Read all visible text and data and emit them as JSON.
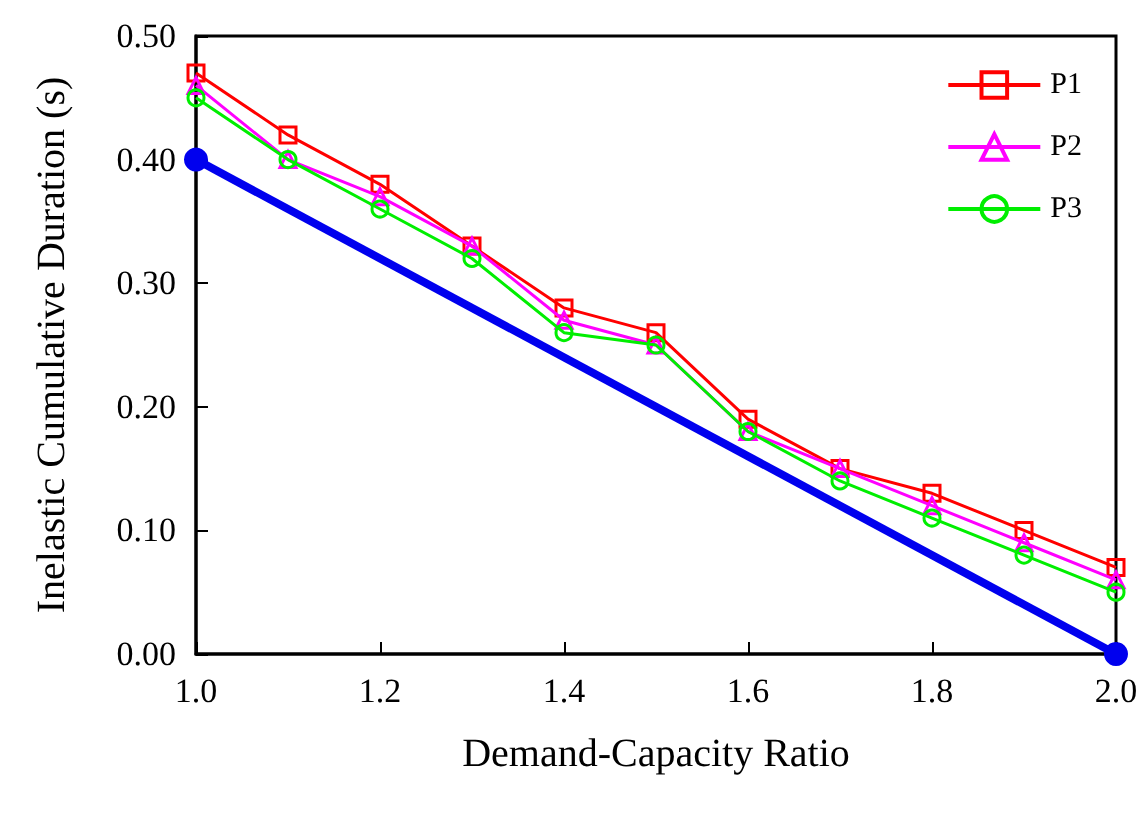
{
  "chart_data": {
    "type": "line",
    "xlabel": "Demand-Capacity Ratio",
    "ylabel": "Inelastic Cumulative Duration (s)",
    "x": [
      1.0,
      1.1,
      1.2,
      1.3,
      1.4,
      1.5,
      1.6,
      1.7,
      1.8,
      1.9,
      2.0
    ],
    "series": [
      {
        "name": "P1",
        "color": "#ff0000",
        "marker": "square",
        "values": [
          0.47,
          0.42,
          0.38,
          0.33,
          0.28,
          0.26,
          0.19,
          0.15,
          0.13,
          0.1,
          0.07
        ]
      },
      {
        "name": "P2",
        "color": "#ff00ff",
        "marker": "triangle",
        "values": [
          0.46,
          0.4,
          0.37,
          0.33,
          0.27,
          0.25,
          0.18,
          0.15,
          0.12,
          0.09,
          0.06
        ]
      },
      {
        "name": "P3",
        "color": "#00ee00",
        "marker": "circle",
        "values": [
          0.45,
          0.4,
          0.36,
          0.32,
          0.26,
          0.25,
          0.18,
          0.14,
          0.11,
          0.08,
          0.05
        ]
      },
      {
        "color": "#0000ee",
        "marker": "circle",
        "x": [
          1.0,
          2.0
        ],
        "values": [
          0.4,
          0.0
        ]
      }
    ],
    "xlim": [
      1.0,
      2.0
    ],
    "xticks": [
      {
        "value": 1.0,
        "label": "1.0"
      },
      1.2,
      1.4,
      1.6,
      1.8,
      {
        "value": 2.0,
        "label": "2.0"
      }
    ],
    "ylim": [
      0,
      0.5
    ],
    "yticks": [
      {
        "value": 0,
        "label": "0.00"
      },
      {
        "value": 0.1,
        "label": "0.10"
      },
      {
        "value": 0.2,
        "label": "0.20"
      },
      {
        "value": 0.3,
        "label": "0.30"
      },
      {
        "value": 0.4,
        "label": "0.40"
      },
      {
        "value": 0.5,
        "label": "0.50"
      }
    ],
    "grid": false,
    "legend": "top right",
    "line_style": "solid"
  }
}
